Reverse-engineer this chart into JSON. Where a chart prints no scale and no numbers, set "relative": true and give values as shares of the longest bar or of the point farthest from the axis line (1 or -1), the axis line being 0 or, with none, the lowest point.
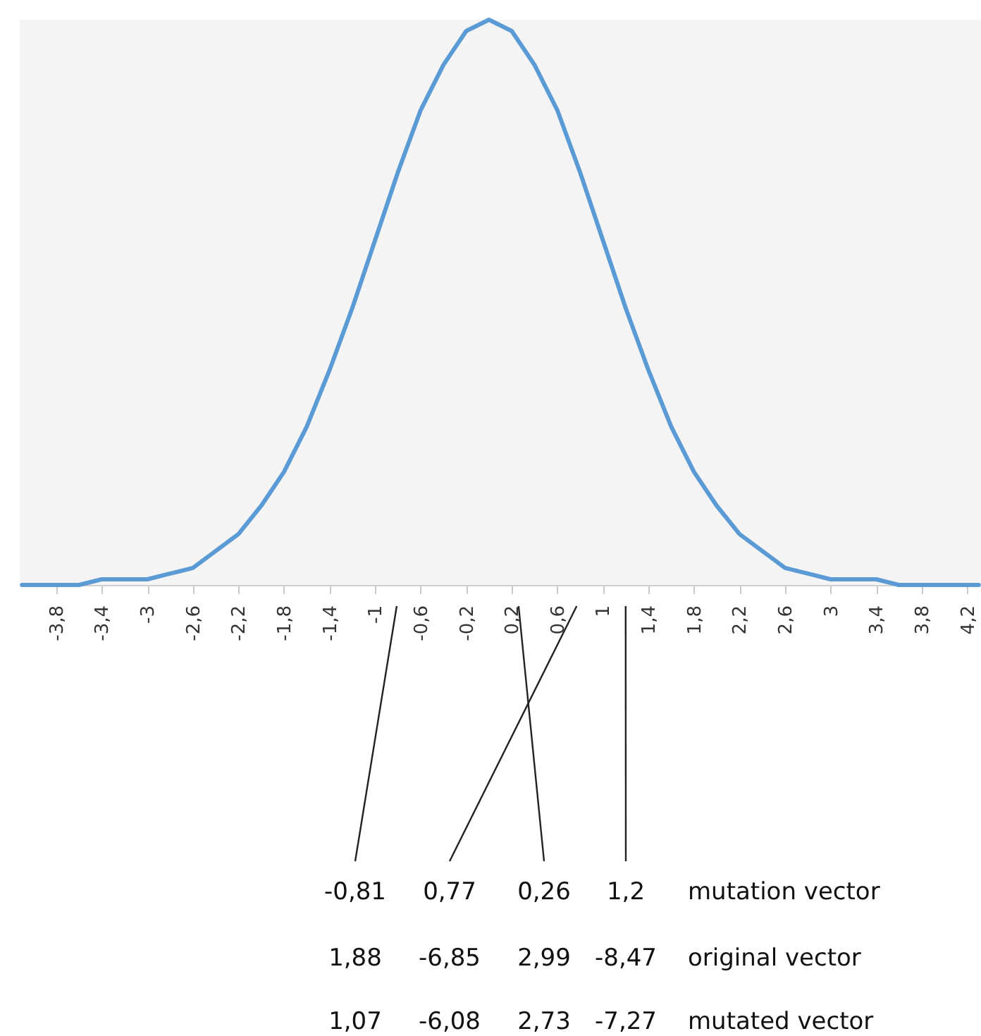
{
  "chart_data": {
    "type": "line",
    "relative": true,
    "color": "#5b9bd5",
    "marker": "none",
    "line_style": "solid",
    "grid": false,
    "x": [
      -4.1,
      -4.0,
      -3.8,
      -3.6,
      -3.4,
      -3.2,
      -3.0,
      -2.8,
      -2.6,
      -2.4,
      -2.2,
      -2.0,
      -1.8,
      -1.6,
      -1.4,
      -1.2,
      -1.0,
      -0.8,
      -0.6,
      -0.4,
      -0.2,
      0,
      0.2,
      0.4,
      0.6,
      0.8,
      1.0,
      1.2,
      1.4,
      1.6,
      1.8,
      2.0,
      2.2,
      2.4,
      2.6,
      2.8,
      3.0,
      3.2,
      3.4,
      3.6,
      3.8,
      4.0,
      4.2,
      4.3
    ],
    "values": [
      0,
      0,
      0,
      0,
      0.01,
      0.01,
      0.01,
      0.02,
      0.03,
      0.06,
      0.09,
      0.14,
      0.2,
      0.28,
      0.38,
      0.49,
      0.61,
      0.73,
      0.84,
      0.92,
      0.98,
      1,
      0.98,
      0.92,
      0.84,
      0.73,
      0.61,
      0.49,
      0.38,
      0.28,
      0.2,
      0.14,
      0.09,
      0.06,
      0.03,
      0.02,
      0.01,
      0.01,
      0.01,
      0,
      0,
      0,
      0,
      0
    ],
    "xlim": [
      -4.12,
      4.32
    ],
    "xticks": [
      {
        "value": -3.8,
        "label": "-3,8"
      },
      {
        "value": -3.4,
        "label": "-3,4"
      },
      -3,
      {
        "value": -2.6,
        "label": "-2,6"
      },
      {
        "value": -2.2,
        "label": "-2,2"
      },
      {
        "value": -1.8,
        "label": "-1,8"
      },
      {
        "value": -1.4,
        "label": "-1,4"
      },
      -1,
      {
        "value": -0.6,
        "label": "-0,6"
      },
      {
        "value": -0.2,
        "label": "-0,2"
      },
      {
        "value": 0.2,
        "label": "0,2"
      },
      {
        "value": 0.6,
        "label": "0,6"
      },
      1,
      {
        "value": 1.4,
        "label": "1,4"
      },
      {
        "value": 1.8,
        "label": "1,8"
      },
      {
        "value": 2.2,
        "label": "2,2"
      },
      {
        "value": 2.6,
        "label": "2,6"
      },
      3,
      {
        "value": 3.4,
        "label": "3,4"
      },
      {
        "value": 3.8,
        "label": "3,8"
      },
      {
        "value": 4.2,
        "label": "4,2"
      }
    ],
    "annotations": [
      "-0,81",
      "0,77",
      "0,26",
      "1,2",
      "mutation vector",
      "1,88",
      "-6,85",
      "2,99",
      "-8,47",
      "original vector",
      "1,07",
      "-6,08",
      "2,73",
      "-7,27",
      "mutated vector"
    ]
  }
}
